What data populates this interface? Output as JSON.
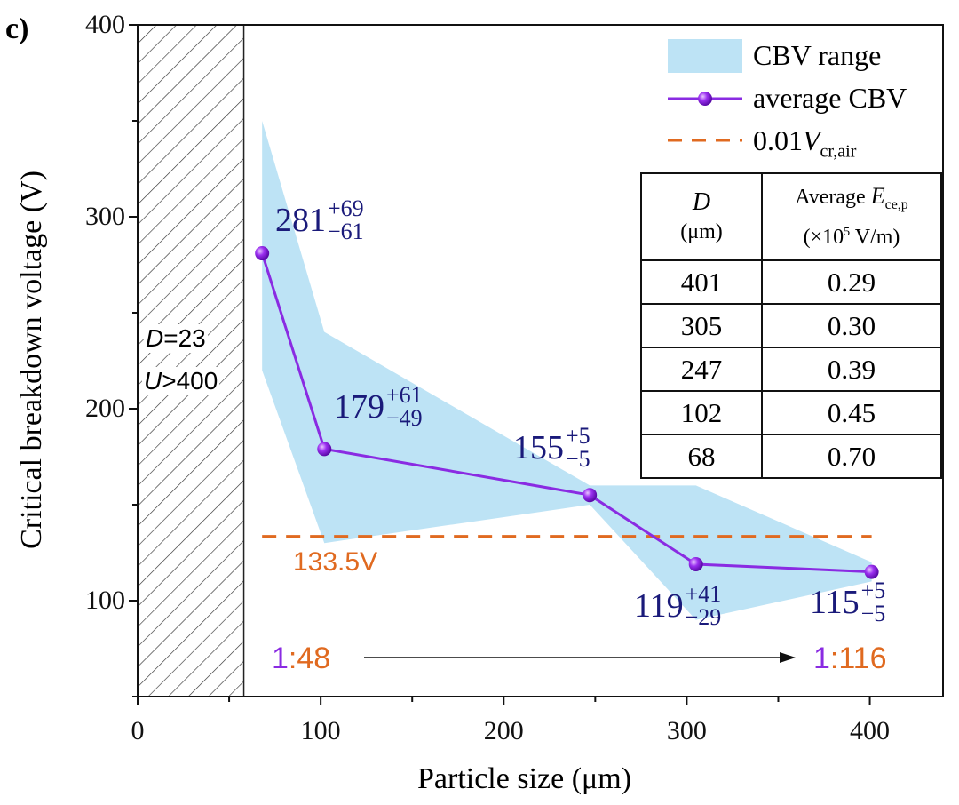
{
  "panel_label": "c)",
  "chart_data": {
    "type": "line",
    "xlabel": "Particle size (μm)",
    "ylabel": "Critical breakdown voltage (V)",
    "xlim": [
      0,
      440
    ],
    "ylim": [
      50,
      400
    ],
    "xticks": [
      0,
      100,
      200,
      300,
      400
    ],
    "yticks": [
      100,
      200,
      300,
      400
    ],
    "xtick_labels": [
      "0",
      "100",
      "200",
      "300",
      "400"
    ],
    "ytick_labels": [
      "100",
      "200",
      "300",
      "400"
    ],
    "grid": false,
    "legend_position": "top-right",
    "legend": [
      "CBV range",
      "average CBV",
      "0.01",
      "V",
      "cr,air"
    ],
    "series": [
      {
        "name": "average CBV",
        "color": "#8a2be2",
        "x": [
          68,
          102,
          247,
          305,
          401
        ],
        "y": [
          281,
          179,
          155,
          119,
          115
        ]
      },
      {
        "name": "CBV range",
        "color": "#bde3f5",
        "x": [
          68,
          102,
          247,
          305,
          401
        ],
        "upper": [
          350,
          240,
          160,
          160,
          120
        ],
        "lower": [
          220,
          130,
          150,
          90,
          110
        ]
      },
      {
        "name": "0.01Vcr,air",
        "color": "#e06a20",
        "y": 133.5,
        "x_range": [
          68,
          401
        ]
      }
    ],
    "annotations": [
      {
        "value": "281",
        "plus": "+69",
        "minus": "−61"
      },
      {
        "value": "179",
        "plus": "+61",
        "minus": "−49"
      },
      {
        "value": "155",
        "plus": "+5",
        "minus": "−5"
      },
      {
        "value": "119",
        "plus": "+41",
        "minus": "−29"
      },
      {
        "value": "115",
        "plus": "+5",
        "minus": "−5"
      }
    ],
    "threshold_label": "133.5V",
    "hatched_region": {
      "x": [
        0,
        58
      ],
      "label_D": "D",
      "label_D_val": "=23",
      "label_U": "U",
      "label_U_val": ">400"
    },
    "ratio_start": {
      "a": "1",
      "b": ":48"
    },
    "ratio_end": {
      "a": "1",
      "b": ":116"
    },
    "table": {
      "header_col1": "D",
      "header_col1_unit": "(μm)",
      "header_col2": "Average ",
      "header_col2_sym": "E",
      "header_col2_sub": "ce,p",
      "header_col2_unit_a": "(×10",
      "header_col2_unit_exp": "5",
      "header_col2_unit_b": " V/m)",
      "rows": [
        {
          "D": "401",
          "E": "0.29"
        },
        {
          "D": "305",
          "E": "0.30"
        },
        {
          "D": "247",
          "E": "0.39"
        },
        {
          "D": "102",
          "E": "0.45"
        },
        {
          "D": "68",
          "E": "0.70"
        }
      ]
    }
  }
}
